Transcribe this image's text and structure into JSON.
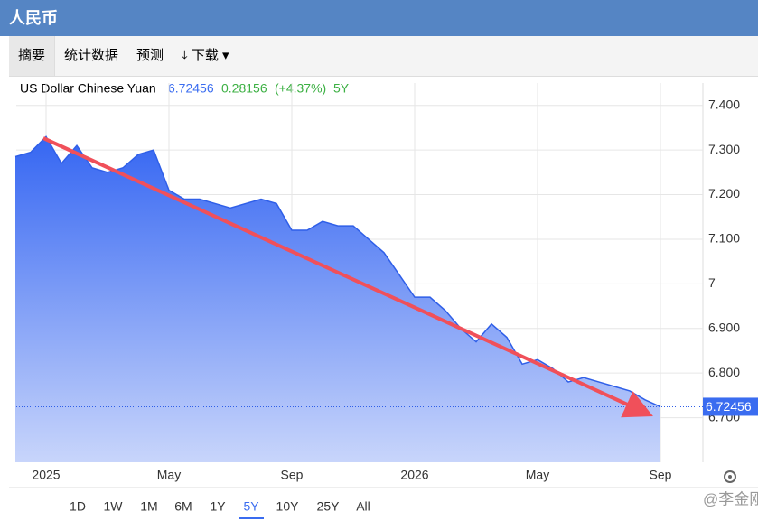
{
  "header": {
    "title": "人民币"
  },
  "tabs": [
    "摘要",
    "统计数据",
    "预测",
    "下载"
  ],
  "chart_data": {
    "type": "area",
    "title": "US Dollar Chinese Yuan",
    "last_value": 6.72456,
    "change": 0.28156,
    "change_percent": "(+4.37%)",
    "categories": [
      null,
      null,
      "2025",
      null,
      null,
      null,
      null,
      null,
      null,
      null,
      "May",
      null,
      null,
      null,
      null,
      null,
      null,
      null,
      "Sep",
      null,
      null,
      null,
      null,
      null,
      null,
      null,
      "2026",
      null,
      null,
      null,
      null,
      null,
      null,
      null,
      "May",
      null,
      null,
      null,
      null,
      null,
      null,
      null,
      "Sep"
    ],
    "series": [
      {
        "name": "USD/CNY",
        "color": "#2f5fe8",
        "values": [
          7.285,
          7.295,
          7.33,
          7.27,
          7.31,
          7.26,
          7.25,
          7.26,
          7.29,
          7.3,
          7.21,
          7.19,
          7.19,
          7.18,
          7.17,
          7.18,
          7.19,
          7.18,
          7.12,
          7.12,
          7.14,
          7.13,
          7.13,
          7.1,
          7.07,
          7.02,
          6.97,
          6.97,
          6.94,
          6.9,
          6.87,
          6.91,
          6.88,
          6.82,
          6.83,
          6.81,
          6.78,
          6.79,
          6.78,
          6.77,
          6.76,
          6.74,
          6.72456
        ]
      }
    ],
    "ylim": [
      6.6,
      7.45
    ],
    "yticks": [
      {
        "value": 6.7,
        "label": "6.700"
      },
      {
        "value": 6.8,
        "label": "6.800"
      },
      {
        "value": 6.9,
        "label": "6.900"
      },
      7,
      {
        "value": 7.1,
        "label": "7.100"
      },
      {
        "value": 7.2,
        "label": "7.200"
      },
      {
        "value": 7.3,
        "label": "7.300"
      },
      {
        "value": 7.4,
        "label": "7.400"
      }
    ],
    "grid": true
  },
  "range_buttons": [
    "1D",
    "1W",
    "1M",
    "6M",
    "1Y",
    "5Y",
    "10Y",
    "25Y",
    "All"
  ],
  "active_range": 5,
  "watermark": "@李金刚"
}
